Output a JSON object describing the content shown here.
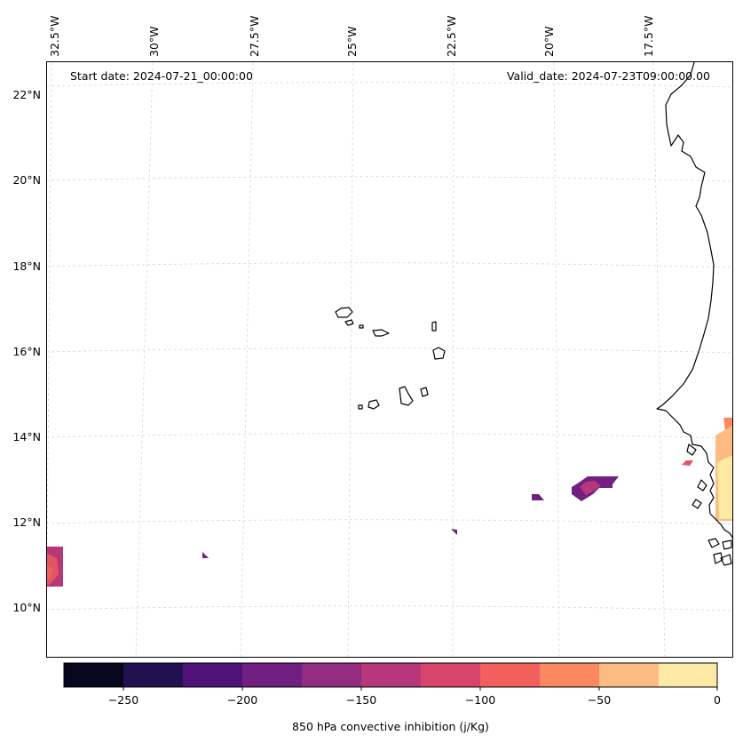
{
  "map": {
    "start_label": "Start date: 2024-07-21_00:00:00",
    "valid_label": "Valid_date: 2024-07-23T09:00:00.00",
    "lon_labels": [
      "32.5°W",
      "30°W",
      "27.5°W",
      "25°W",
      "22.5°W",
      "20°W",
      "17.5°W"
    ],
    "lat_labels": [
      "22°N",
      "20°N",
      "18°N",
      "16°N",
      "14°N",
      "12°N",
      "10°N"
    ]
  },
  "colorbar": {
    "label": "850 hPa convective inhibition (j/Kg)",
    "ticks": [
      "−250",
      "−200",
      "−150",
      "−100",
      "−50",
      "0"
    ],
    "colors": [
      "#07061c",
      "#221150",
      "#4f127b",
      "#711f81",
      "#932b80",
      "#b6377a",
      "#d8456c",
      "#f1605d",
      "#fb8861",
      "#febb81",
      "#fde9a4"
    ]
  },
  "overlay_colors": {
    "purple": "#711f81",
    "magenta": "#b6377a",
    "red_pink": "#e25563",
    "coral": "#f1605d",
    "orange": "#fb8861",
    "peach": "#febb81",
    "pale_yellow": "#fde9a4"
  }
}
